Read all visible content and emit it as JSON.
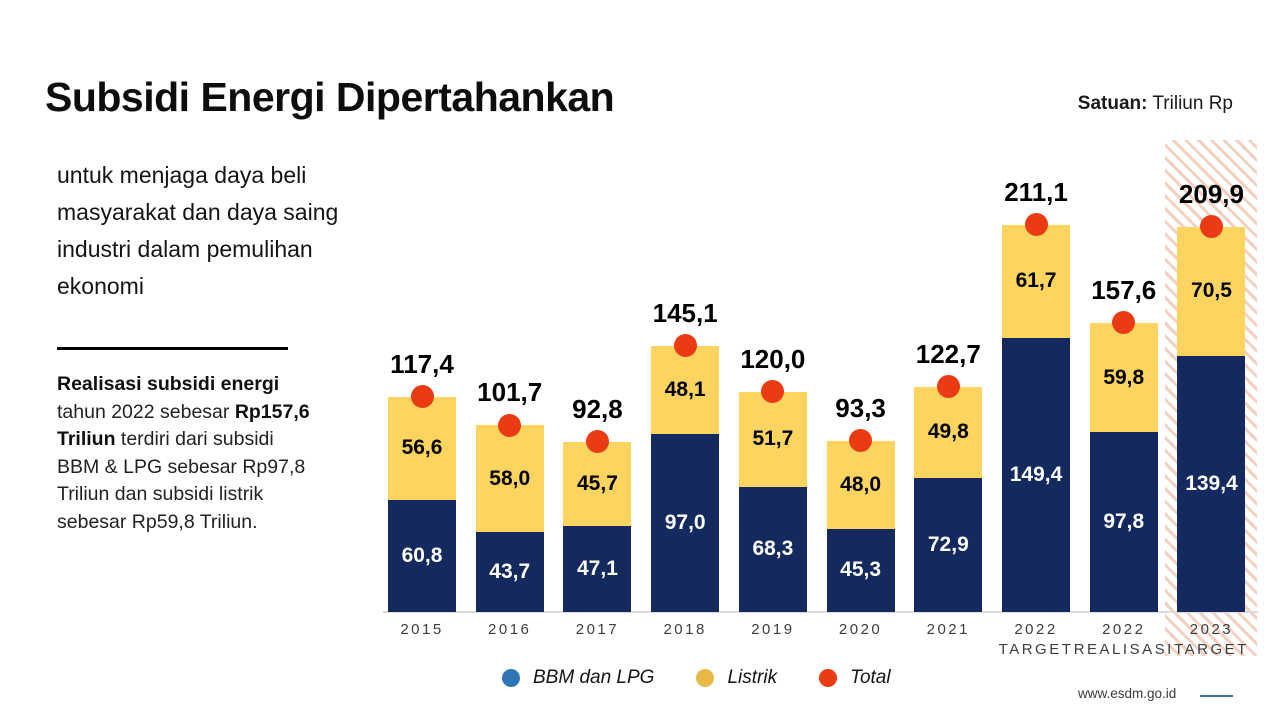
{
  "header": {
    "title": "Subsidi Energi Dipertahankan",
    "unit_label": "Satuan:",
    "unit_value": " Triliun Rp"
  },
  "intro": {
    "lines": [
      "untuk menjaga daya beli",
      "masyarakat dan daya saing",
      "industri dalam pemulihan",
      "ekonomi"
    ]
  },
  "note": {
    "lines": [
      [
        {
          "t": "Realisasi subsidi energi",
          "b": true
        }
      ],
      [
        {
          "t": "tahun 2022 sebesar ",
          "b": false
        },
        {
          "t": "Rp157,6",
          "b": true
        }
      ],
      [
        {
          "t": "Triliun",
          "b": true
        },
        {
          "t": " terdiri dari subsidi",
          "b": false
        }
      ],
      [
        {
          "t": "BBM & LPG sebesar Rp97,8",
          "b": false
        }
      ],
      [
        {
          "t": "Triliun dan subsidi listrik",
          "b": false
        }
      ],
      [
        {
          "t": "sebesar Rp59,8 Triliun.",
          "b": false
        }
      ]
    ]
  },
  "chart_data": {
    "type": "bar",
    "subtype": "stacked-bars-with-total-markers",
    "title": "Subsidi Energi Dipertahankan",
    "unit": "Triliun Rp",
    "grid": false,
    "legend_position": "bottom",
    "ylim": [
      0,
      230
    ],
    "categories": [
      [
        "2015"
      ],
      [
        "2016"
      ],
      [
        "2017"
      ],
      [
        "2018"
      ],
      [
        "2019"
      ],
      [
        "2020"
      ],
      [
        "2021"
      ],
      [
        "2022",
        "TARGET"
      ],
      [
        "2022",
        "REALISASI"
      ],
      [
        "2023",
        "TARGET"
      ]
    ],
    "highlighted_category_index": 9,
    "series": [
      {
        "name": "BBM dan LPG",
        "color": "#142a5e",
        "label_color": "#ffffff",
        "values": [
          60.8,
          43.7,
          47.1,
          97.0,
          68.3,
          45.3,
          72.9,
          149.4,
          97.8,
          139.4
        ]
      },
      {
        "name": "Listrik",
        "color": "#fcd45f",
        "label_color": "#000000",
        "values": [
          56.6,
          58.0,
          45.7,
          48.1,
          51.7,
          48.0,
          49.8,
          61.7,
          59.8,
          70.5
        ]
      }
    ],
    "totals": {
      "name": "Total",
      "marker_color": "#eb3b14",
      "values": [
        117.4,
        101.7,
        92.8,
        145.1,
        120.0,
        93.3,
        122.7,
        211.1,
        157.6,
        209.9
      ]
    }
  },
  "legend": {
    "items": [
      {
        "label": "BBM dan LPG",
        "color": "#2e75b6"
      },
      {
        "label": "Listrik",
        "color": "#e8b84b"
      },
      {
        "label": "Total",
        "color": "#eb3b14"
      }
    ]
  },
  "footer": {
    "url": "www.esdm.go.id"
  }
}
